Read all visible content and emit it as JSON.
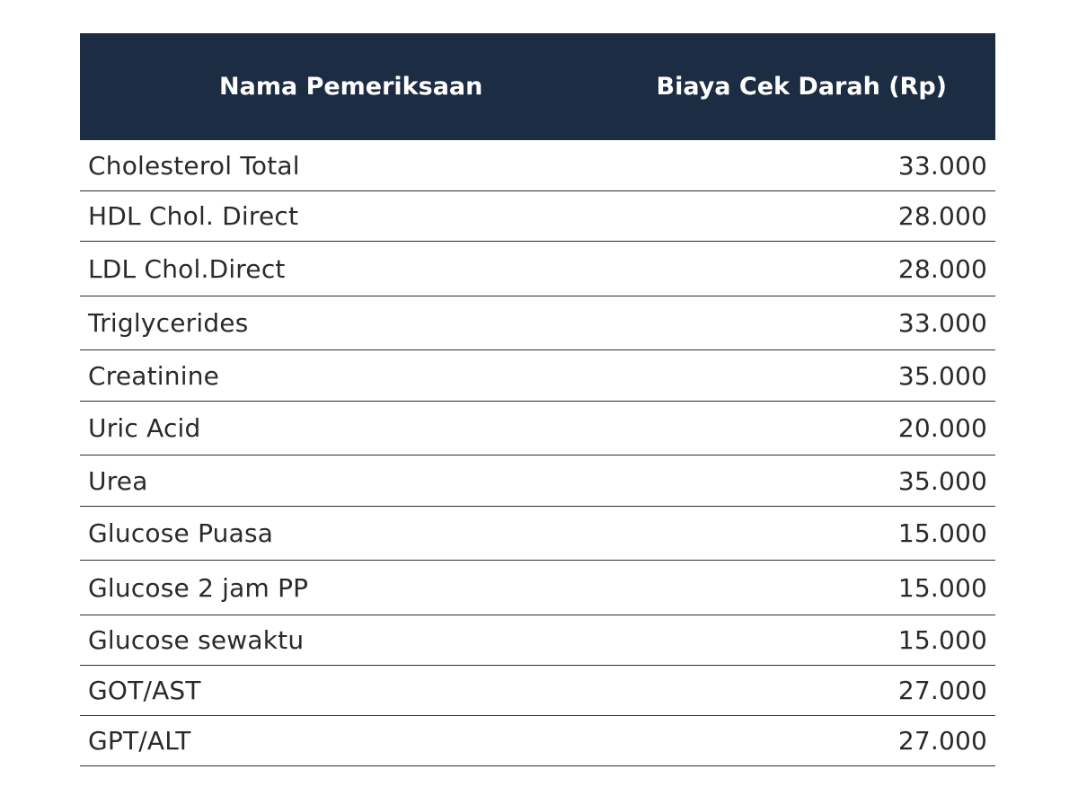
{
  "table": {
    "headers": {
      "name": "Nama Pemeriksaan",
      "price": "Biaya Cek Darah (Rp)"
    },
    "rows": [
      {
        "name": "Cholesterol Total",
        "price": "33.000"
      },
      {
        "name": "HDL Chol. Direct",
        "price": "28.000"
      },
      {
        "name": "LDL Chol.Direct",
        "price": "28.000"
      },
      {
        "name": "Triglycerides",
        "price": "33.000"
      },
      {
        "name": "Creatinine",
        "price": "35.000"
      },
      {
        "name": "Uric Acid",
        "price": "20.000"
      },
      {
        "name": "Urea",
        "price": "35.000"
      },
      {
        "name": "Glucose Puasa",
        "price": "15.000"
      },
      {
        "name": "Glucose 2 jam PP",
        "price": "15.000"
      },
      {
        "name": "Glucose sewaktu",
        "price": "15.000"
      },
      {
        "name": "GOT/AST",
        "price": "27.000"
      },
      {
        "name": "GPT/ALT",
        "price": "27.000"
      }
    ]
  },
  "colors": {
    "header_background": "#1b2c43",
    "header_text": "#ffffff",
    "body_text": "#2a2a2a",
    "row_divider": "#2e2e2e"
  }
}
